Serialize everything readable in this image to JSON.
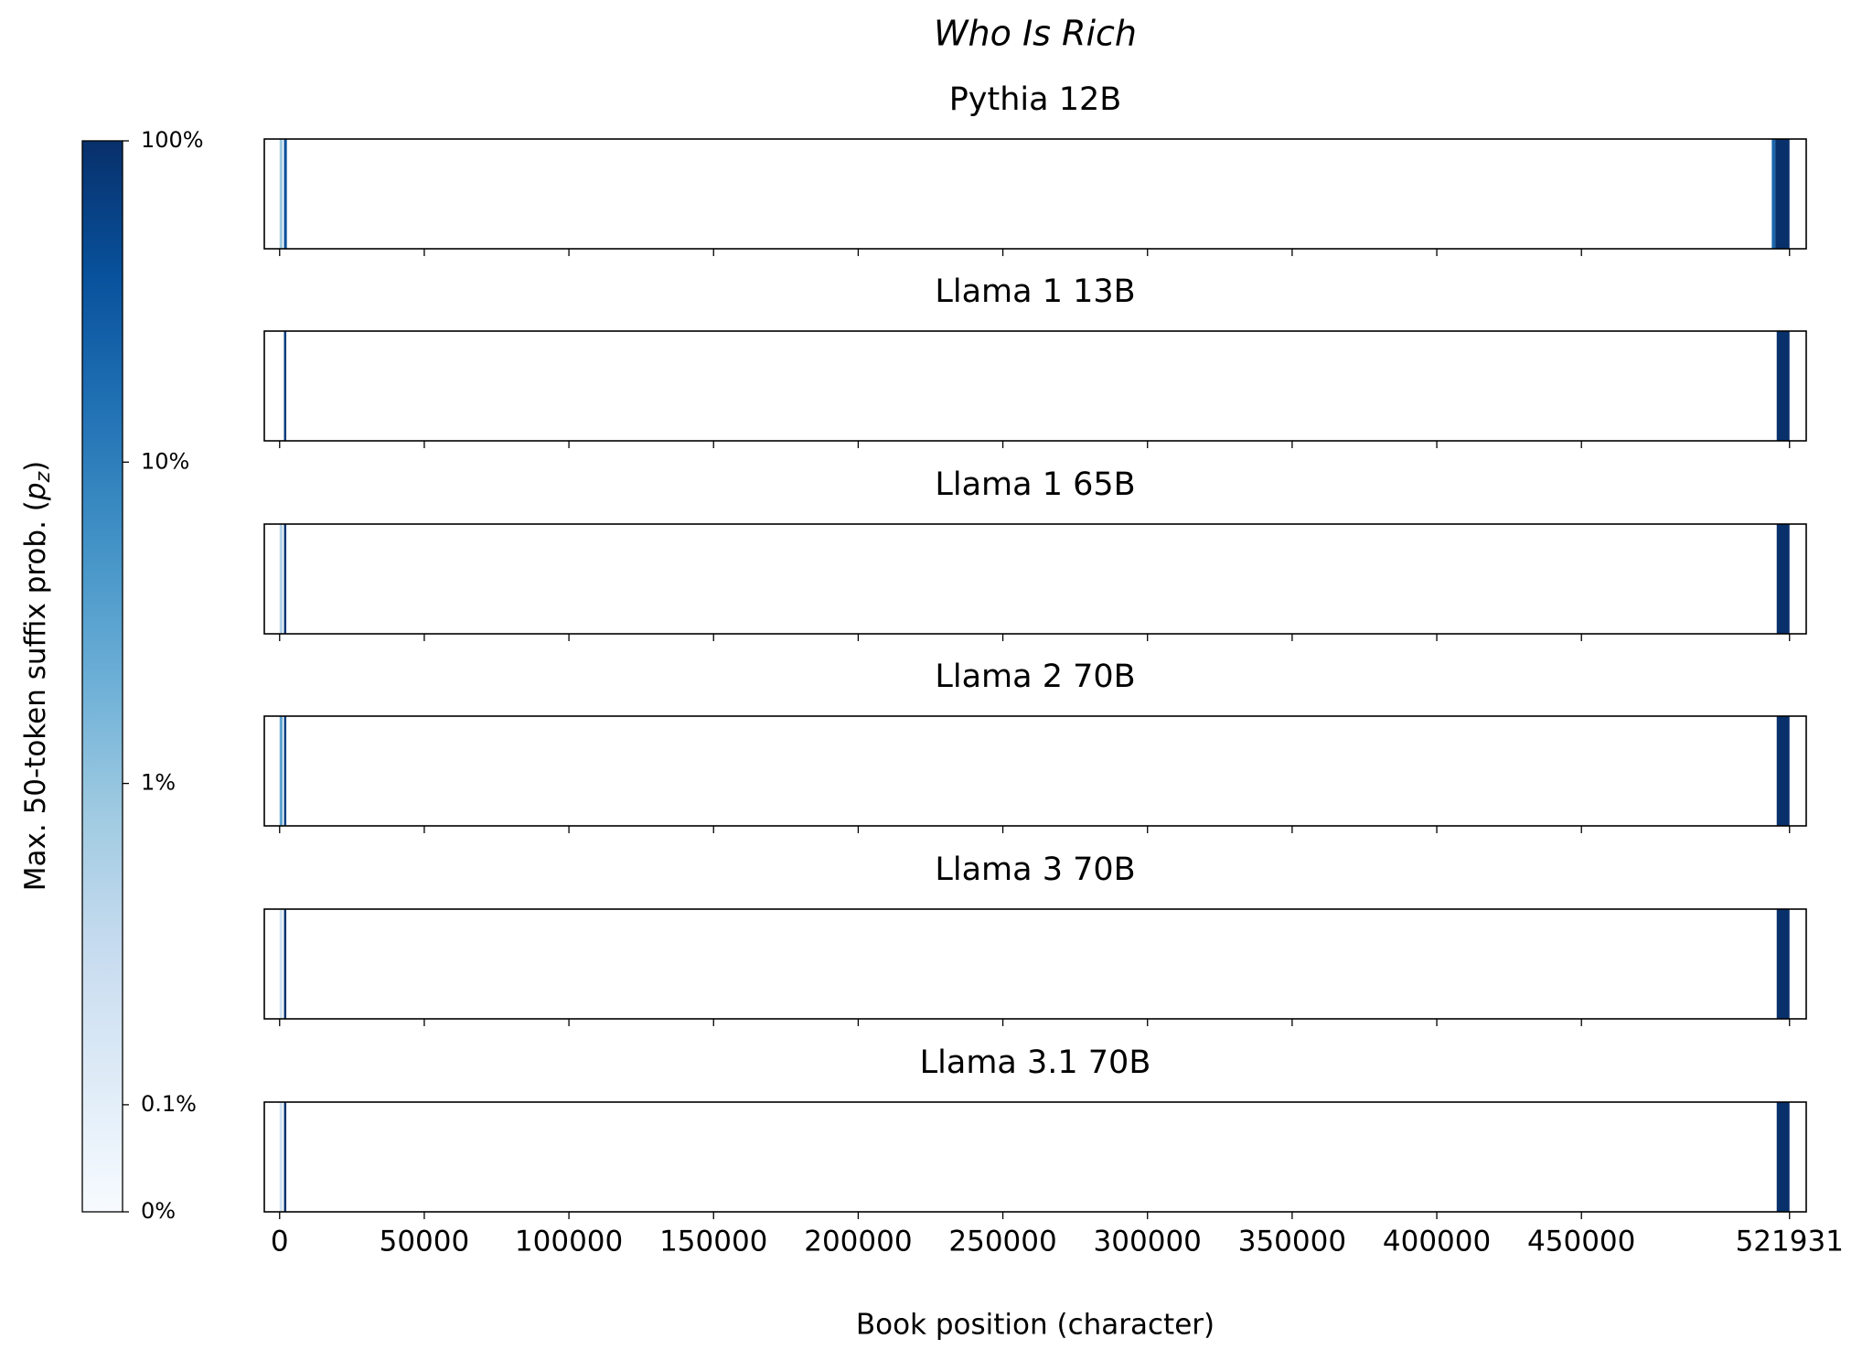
{
  "chart_data": {
    "type": "heatmap-strips",
    "title": "Who Is Rich",
    "xlabel": "Book position (character)",
    "xlim": [
      -5300,
      527700
    ],
    "xticks": [
      0,
      50000,
      100000,
      150000,
      200000,
      250000,
      300000,
      350000,
      400000,
      450000,
      521931
    ],
    "colorbar": {
      "label": "Max. 50-token suffix prob. (",
      "label_symbol": "p",
      "label_subscript": "z",
      "label_close": ")",
      "clim": [
        0,
        100
      ],
      "linthresh": 0.1,
      "linscale": 0.3,
      "ticks": [
        {
          "value": 0,
          "label": "0%"
        },
        {
          "value": 0.1,
          "label": "0.1%"
        },
        {
          "value": 1,
          "label": "1%"
        },
        {
          "value": 10,
          "label": "10%"
        },
        {
          "value": 100,
          "label": "100%"
        }
      ],
      "colormap": [
        "#f7fbff",
        "#deebf7",
        "#c6dbef",
        "#9ecae1",
        "#6baed6",
        "#4292c6",
        "#2171b5",
        "#08519c",
        "#08306b"
      ]
    },
    "series": [
      {
        "name": "Pythia 12B",
        "segments": [
          [
            0,
            1000,
            0.8
          ],
          [
            1500,
            2500,
            40
          ],
          [
            515800,
            517000,
            20
          ],
          [
            517000,
            521931,
            100
          ]
        ]
      },
      {
        "name": "Llama 1 13B",
        "segments": [
          [
            1500,
            2300,
            70
          ],
          [
            517500,
            521931,
            100
          ]
        ]
      },
      {
        "name": "Llama 1 65B",
        "segments": [
          [
            0,
            1000,
            0.5
          ],
          [
            1500,
            2300,
            80
          ],
          [
            517500,
            521931,
            100
          ]
        ]
      },
      {
        "name": "Llama 2 70B",
        "segments": [
          [
            0,
            1000,
            3
          ],
          [
            1500,
            2300,
            60
          ],
          [
            517500,
            521931,
            100
          ]
        ]
      },
      {
        "name": "Llama 3 70B",
        "segments": [
          [
            0,
            1000,
            0.2
          ],
          [
            1500,
            2300,
            90
          ],
          [
            517500,
            521931,
            100
          ]
        ]
      },
      {
        "name": "Llama 3.1 70B",
        "segments": [
          [
            0,
            1000,
            0.2
          ],
          [
            1500,
            2300,
            90
          ],
          [
            517500,
            521931,
            100
          ]
        ]
      }
    ]
  }
}
